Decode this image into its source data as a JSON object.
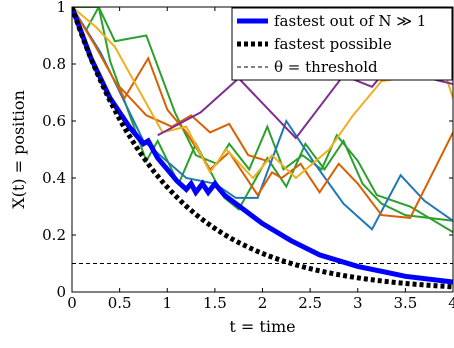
{
  "chart_data": {
    "type": "line",
    "xlabel": "t = time",
    "ylabel": "X(t) = position",
    "xlim": [
      0,
      4
    ],
    "ylim": [
      0,
      1
    ],
    "grid": false,
    "legend_position": "top-right",
    "x_ticks": [
      "0",
      "0.5",
      "1",
      "1.5",
      "2",
      "2.5",
      "3",
      "3.5",
      "4"
    ],
    "y_ticks": [
      "0",
      "0.2",
      "0.4",
      "0.6",
      "0.8",
      "1"
    ],
    "legend": [
      {
        "label": "fastest out of N ≫ 1",
        "style": "thick-blue"
      },
      {
        "label": "fastest possible",
        "style": "thick-black-dotted"
      },
      {
        "label": "θ = threshold",
        "style": "thin-black-dashed"
      }
    ],
    "threshold": 0.1,
    "fastest_possible": {
      "formula": "exp(-t)"
    },
    "series": [
      {
        "color": "#2ca02c",
        "points": [
          [
            0,
            1
          ],
          [
            0.28,
            1
          ],
          [
            0.4,
            0.81
          ],
          [
            0.78,
            0.46
          ],
          [
            0.9,
            0.53
          ],
          [
            1.12,
            0.38
          ],
          [
            1.3,
            0.52
          ],
          [
            1.6,
            0.33
          ],
          [
            1.75,
            0.29
          ],
          [
            2.05,
            0.47
          ],
          [
            2.25,
            0.37
          ],
          [
            2.45,
            0.52
          ],
          [
            2.65,
            0.43
          ],
          [
            2.85,
            0.53
          ],
          [
            3.05,
            0.38
          ],
          [
            3.25,
            0.31
          ],
          [
            3.5,
            0.27
          ],
          [
            4,
            0.25
          ]
        ]
      },
      {
        "color": "#2ca02c",
        "points": [
          [
            0.15,
            0.92
          ],
          [
            0.28,
            1
          ],
          [
            0.45,
            0.88
          ],
          [
            0.78,
            0.9
          ],
          [
            1.08,
            0.63
          ],
          [
            1.3,
            0.48
          ],
          [
            1.52,
            0.45
          ],
          [
            1.65,
            0.52
          ],
          [
            1.86,
            0.43
          ],
          [
            2.05,
            0.58
          ],
          [
            2.22,
            0.43
          ],
          [
            2.42,
            0.48
          ],
          [
            2.62,
            0.43
          ],
          [
            2.78,
            0.55
          ],
          [
            3.0,
            0.46
          ],
          [
            3.2,
            0.34
          ],
          [
            3.55,
            0.3
          ],
          [
            4,
            0.21
          ]
        ]
      },
      {
        "color": "#1f77b4",
        "points": [
          [
            0,
            1
          ],
          [
            0.3,
            0.84
          ],
          [
            0.75,
            0.53
          ],
          [
            1.2,
            0.4
          ],
          [
            1.5,
            0.38
          ],
          [
            1.72,
            0.33
          ],
          [
            1.95,
            0.33
          ],
          [
            2.25,
            0.6
          ],
          [
            2.55,
            0.45
          ],
          [
            2.85,
            0.31
          ],
          [
            3.15,
            0.22
          ],
          [
            3.45,
            0.41
          ],
          [
            3.7,
            0.32
          ],
          [
            4,
            0.25
          ]
        ]
      },
      {
        "color": "#d95f02",
        "points": [
          [
            0,
            1
          ],
          [
            0.25,
            0.86
          ],
          [
            0.55,
            0.68
          ],
          [
            0.8,
            0.82
          ],
          [
            1.0,
            0.64
          ],
          [
            1.2,
            0.56
          ],
          [
            1.45,
            0.43
          ],
          [
            1.65,
            0.49
          ],
          [
            1.95,
            0.34
          ],
          [
            2.1,
            0.42
          ],
          [
            2.2,
            0.4
          ],
          [
            2.4,
            0.45
          ],
          [
            2.6,
            0.35
          ],
          [
            2.8,
            0.45
          ],
          [
            3.0,
            0.38
          ],
          [
            3.25,
            0.27
          ],
          [
            3.55,
            0.26
          ],
          [
            4,
            0.56
          ]
        ]
      },
      {
        "color": "#d95f02",
        "points": [
          [
            0.5,
            0.72
          ],
          [
            0.78,
            0.62
          ],
          [
            1.05,
            0.58
          ],
          [
            1.25,
            0.62
          ],
          [
            1.45,
            0.56
          ],
          [
            1.65,
            0.59
          ],
          [
            1.85,
            0.48
          ],
          [
            2.05,
            0.46
          ]
        ]
      },
      {
        "color": "#edb120",
        "points": [
          [
            0,
            1
          ],
          [
            0.25,
            0.93
          ],
          [
            0.45,
            0.86
          ],
          [
            0.95,
            0.56
          ],
          [
            1.2,
            0.58
          ],
          [
            1.45,
            0.42
          ],
          [
            1.62,
            0.5
          ],
          [
            1.9,
            0.4
          ],
          [
            2.1,
            0.48
          ],
          [
            2.35,
            0.4
          ],
          [
            2.7,
            0.5
          ],
          [
            2.95,
            0.62
          ],
          [
            3.25,
            0.74
          ],
          [
            3.45,
            0.75
          ],
          [
            3.75,
            0.94
          ],
          [
            4,
            0.68
          ]
        ]
      },
      {
        "color": "#7e2f8e",
        "points": [
          [
            0.9,
            0.55
          ],
          [
            1.35,
            0.63
          ],
          [
            1.75,
            0.75
          ],
          [
            2.35,
            0.54
          ],
          [
            2.85,
            0.76
          ],
          [
            3.15,
            0.72
          ],
          [
            3.45,
            0.84
          ],
          [
            3.75,
            0.75
          ],
          [
            4,
            0.73
          ]
        ]
      },
      {
        "color": "#7e2f8e",
        "points": [
          [
            2.6,
            0.78
          ],
          [
            2.95,
            0.87
          ],
          [
            3.3,
            0.78
          ],
          [
            3.55,
            0.92
          ]
        ]
      },
      {
        "color": "#0000ff",
        "name": "fastest out of N ≫ 1",
        "points": [
          [
            0,
            1
          ],
          [
            0.2,
            0.82
          ],
          [
            0.4,
            0.68
          ],
          [
            0.6,
            0.58
          ],
          [
            0.75,
            0.52
          ],
          [
            0.8,
            0.53
          ],
          [
            0.9,
            0.47
          ],
          [
            1.0,
            0.43
          ],
          [
            1.1,
            0.39
          ],
          [
            1.2,
            0.36
          ],
          [
            1.25,
            0.38
          ],
          [
            1.3,
            0.35
          ],
          [
            1.37,
            0.38
          ],
          [
            1.43,
            0.35
          ],
          [
            1.5,
            0.38
          ],
          [
            1.6,
            0.34
          ],
          [
            1.8,
            0.29
          ],
          [
            2.0,
            0.24
          ],
          [
            2.3,
            0.18
          ],
          [
            2.6,
            0.13
          ],
          [
            3.0,
            0.09
          ],
          [
            3.5,
            0.055
          ],
          [
            4,
            0.035
          ]
        ]
      }
    ]
  }
}
